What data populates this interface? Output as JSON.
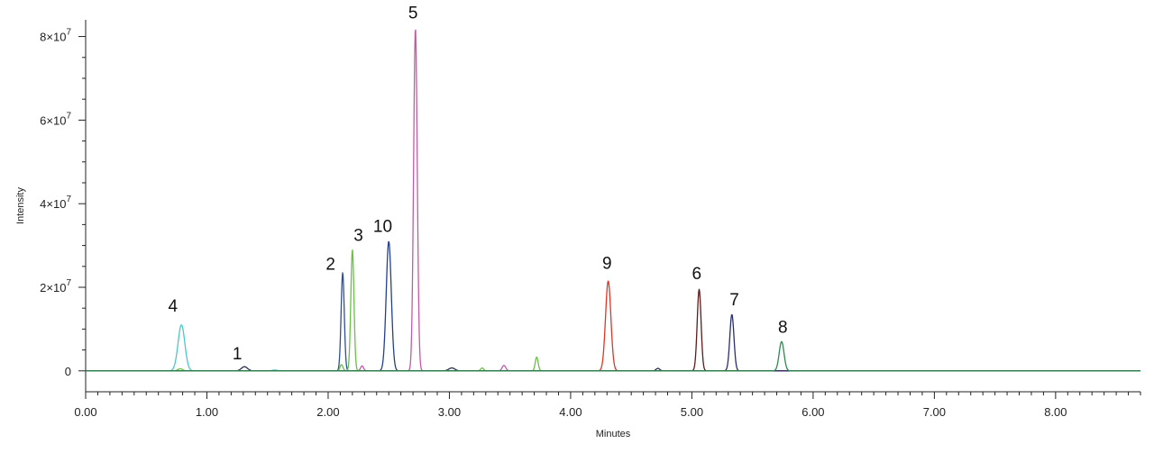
{
  "chart_data": {
    "type": "line",
    "title": "",
    "xlabel": "Minutes",
    "ylabel": "Intensity",
    "xlim": [
      0.0,
      8.7
    ],
    "ylim": [
      -5000000,
      84000000
    ],
    "grid": false,
    "x_ticks": [
      0,
      1,
      2,
      3,
      4,
      5,
      6,
      7,
      8
    ],
    "x_tick_labels": [
      "0.00",
      "1.00",
      "2.00",
      "3.00",
      "4.00",
      "5.00",
      "6.00",
      "7.00",
      "8.00"
    ],
    "y_ticks": [
      0,
      20000000,
      40000000,
      60000000,
      80000000
    ],
    "y_tick_labels": [
      {
        "base": "0",
        "exp": ""
      },
      {
        "base": "2×10",
        "exp": "7"
      },
      {
        "base": "4×10",
        "exp": "7"
      },
      {
        "base": "6×10",
        "exp": "7"
      },
      {
        "base": "8×10",
        "exp": "7"
      }
    ],
    "series": [
      {
        "color": "#4fc6c8",
        "peaks": [
          {
            "x": 0.79,
            "y": 11000000,
            "w": 0.028
          },
          {
            "x": 1.56,
            "y": 200000,
            "w": 0.02
          }
        ]
      },
      {
        "color": "#2a2f4f",
        "peaks": [
          {
            "x": 1.31,
            "y": 1000000,
            "w": 0.025
          },
          {
            "x": 3.02,
            "y": 700000,
            "w": 0.025
          },
          {
            "x": 4.72,
            "y": 600000,
            "w": 0.015
          }
        ]
      },
      {
        "color": "#2f4f9a",
        "peaks": [
          {
            "x": 2.12,
            "y": 23500000,
            "w": 0.013
          }
        ]
      },
      {
        "color": "#6bbf4a",
        "peaks": [
          {
            "x": 0.78,
            "y": 500000,
            "w": 0.02
          },
          {
            "x": 2.11,
            "y": 1500000,
            "w": 0.012
          },
          {
            "x": 2.2,
            "y": 29000000,
            "w": 0.013
          },
          {
            "x": 3.27,
            "y": 700000,
            "w": 0.012
          },
          {
            "x": 3.72,
            "y": 3300000,
            "w": 0.012
          }
        ]
      },
      {
        "color": "#24408a",
        "peaks": [
          {
            "x": 2.5,
            "y": 31000000,
            "w": 0.021
          }
        ]
      },
      {
        "color": "#c35aa8",
        "peaks": [
          {
            "x": 2.28,
            "y": 1200000,
            "w": 0.012
          },
          {
            "x": 2.72,
            "y": 82000000,
            "w": 0.015
          },
          {
            "x": 3.45,
            "y": 1300000,
            "w": 0.015
          }
        ]
      },
      {
        "color": "#d9382a",
        "peaks": [
          {
            "x": 4.31,
            "y": 21500000,
            "w": 0.022
          }
        ]
      },
      {
        "color": "#5a1c1c",
        "peaks": [
          {
            "x": 5.06,
            "y": 19500000,
            "w": 0.016
          }
        ]
      },
      {
        "color": "#2b2f6b",
        "peaks": [
          {
            "x": 5.33,
            "y": 13500000,
            "w": 0.017
          }
        ]
      },
      {
        "color": "#2e8a4e",
        "peaks": [
          {
            "x": 5.74,
            "y": 7000000,
            "w": 0.02
          }
        ]
      }
    ],
    "annotations": [
      {
        "text": "4",
        "x": 0.72,
        "y": 14200000
      },
      {
        "text": "1",
        "x": 1.25,
        "y": 2800000
      },
      {
        "text": "2",
        "x": 2.02,
        "y": 24200000
      },
      {
        "text": "3",
        "x": 2.25,
        "y": 31100000
      },
      {
        "text": "10",
        "x": 2.45,
        "y": 33200000
      },
      {
        "text": "5",
        "x": 2.7,
        "y": 84300000
      },
      {
        "text": "9",
        "x": 4.3,
        "y": 24400000
      },
      {
        "text": "6",
        "x": 5.04,
        "y": 21900000
      },
      {
        "text": "7",
        "x": 5.35,
        "y": 15700000
      },
      {
        "text": "8",
        "x": 5.75,
        "y": 9100000
      }
    ]
  }
}
